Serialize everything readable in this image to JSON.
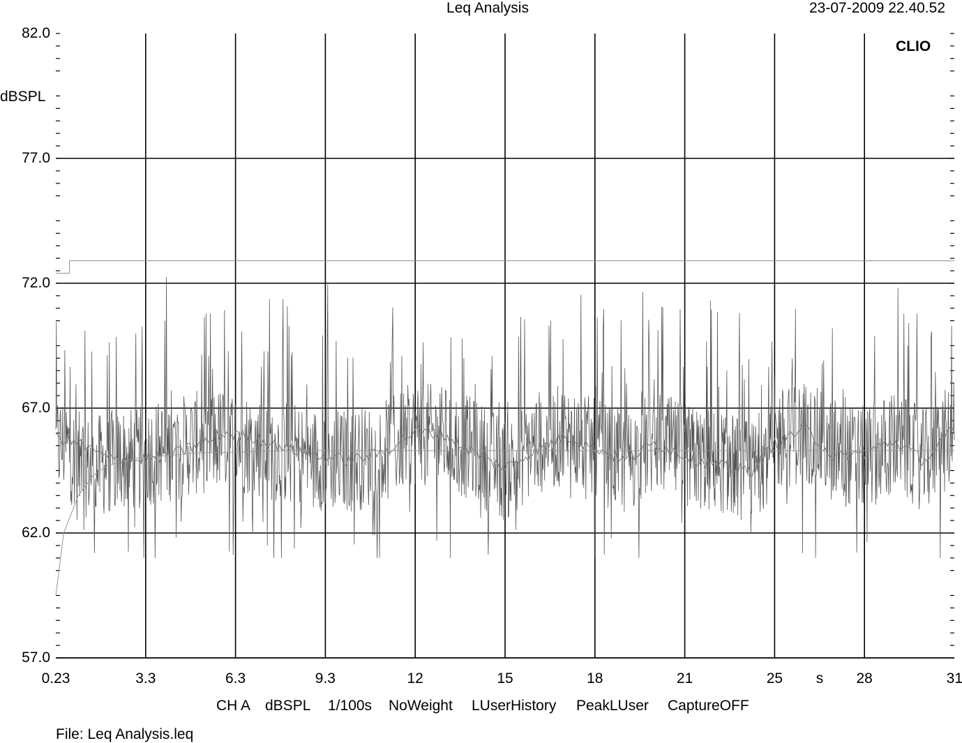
{
  "header": {
    "title": "Leq Analysis",
    "timestamp": "23-07-2009 22.40.52"
  },
  "brand": "CLIO",
  "footer": {
    "settings": [
      "CH A",
      "dBSPL",
      "1/100s",
      "NoWeight",
      "LUserHistory",
      "PeakLUser",
      "CaptureOFF"
    ],
    "file": "File: Leq Analysis.leq"
  },
  "chart_data": {
    "type": "line",
    "title": "Leq Analysis",
    "ylabel": "dBSPL",
    "xlabel": "s",
    "ylim": [
      57.0,
      82.0
    ],
    "xlim": [
      0.23,
      31
    ],
    "y_ticks": [
      "82.0",
      "77.0",
      "72.0",
      "67.0",
      "62.0",
      "57.0"
    ],
    "x_ticks": [
      "0.23",
      "3.3",
      "6.3",
      "9.3",
      "12",
      "15",
      "18",
      "21",
      "25",
      "28",
      "31"
    ],
    "grid": true,
    "series": [
      {
        "role": "instantaneous level (noisy)",
        "color": "#555555",
        "x": [
          0.23,
          0.6,
          1.0,
          1.5,
          2.0,
          2.5,
          3.0,
          3.5,
          4.0,
          5.0,
          6.0,
          7.0,
          8.0,
          9.0,
          10.0,
          11.0,
          12.0,
          13.0,
          14.0,
          15.0,
          16.0,
          17.0,
          18.0,
          19.0,
          20.0,
          21.0,
          22.0,
          23.0,
          24.0,
          25.0,
          26.0,
          27.0,
          28.0,
          29.0,
          30.0,
          31.0
        ],
        "y_mean": [
          65.5,
          65.5,
          64.8,
          64.6,
          64.8,
          65.0,
          64.9,
          65.2,
          65.3,
          65.6,
          65.8,
          65.5,
          65.2,
          65.0,
          64.9,
          65.2,
          66.0,
          65.8,
          65.3,
          64.5,
          65.6,
          65.9,
          65.3,
          64.8,
          65.7,
          65.1,
          64.9,
          64.8,
          64.4,
          65.7,
          66.1,
          65.2,
          65.0,
          65.6,
          64.9,
          66.0
        ],
        "y_range": [
          61.0,
          72.6
        ]
      },
      {
        "role": "short-term Leq (smoothed)",
        "color": "#777777",
        "x": [
          0.23,
          1.0,
          2.0,
          3.0,
          4.0,
          5.0,
          6.0,
          7.0,
          8.0,
          9.0,
          10.0,
          11.0,
          12.0,
          13.0,
          14.0,
          15.0,
          16.0,
          17.0,
          18.0,
          19.0,
          20.0,
          21.0,
          22.0,
          23.0,
          24.0,
          25.0,
          26.0,
          27.0,
          28.0,
          29.0,
          30.0,
          31.0
        ],
        "y": [
          65.8,
          65.6,
          65.0,
          64.9,
          65.1,
          65.5,
          66.0,
          65.8,
          65.4,
          65.1,
          64.9,
          65.2,
          66.1,
          65.9,
          65.2,
          64.6,
          65.3,
          65.9,
          65.4,
          64.9,
          65.6,
          65.1,
          64.8,
          64.6,
          64.5,
          65.6,
          66.2,
          65.0,
          65.2,
          65.7,
          64.9,
          66.2
        ]
      },
      {
        "role": "total Leq (cumulative)",
        "color": "#999999",
        "x": [
          0.23,
          0.5,
          1.0,
          1.5,
          2.0,
          3.0,
          5.0,
          8.0,
          12.0,
          16.0,
          20.0,
          25.0,
          28.0,
          31.0
        ],
        "y": [
          59.5,
          62.0,
          63.5,
          64.3,
          64.7,
          65.0,
          65.2,
          65.3,
          65.3,
          65.3,
          65.3,
          65.3,
          65.3,
          65.3
        ]
      },
      {
        "role": "peak hold",
        "color": "#888888",
        "x": [
          0.23,
          0.7,
          0.7,
          31.0
        ],
        "y": [
          72.4,
          72.4,
          72.9,
          72.9
        ]
      }
    ]
  }
}
